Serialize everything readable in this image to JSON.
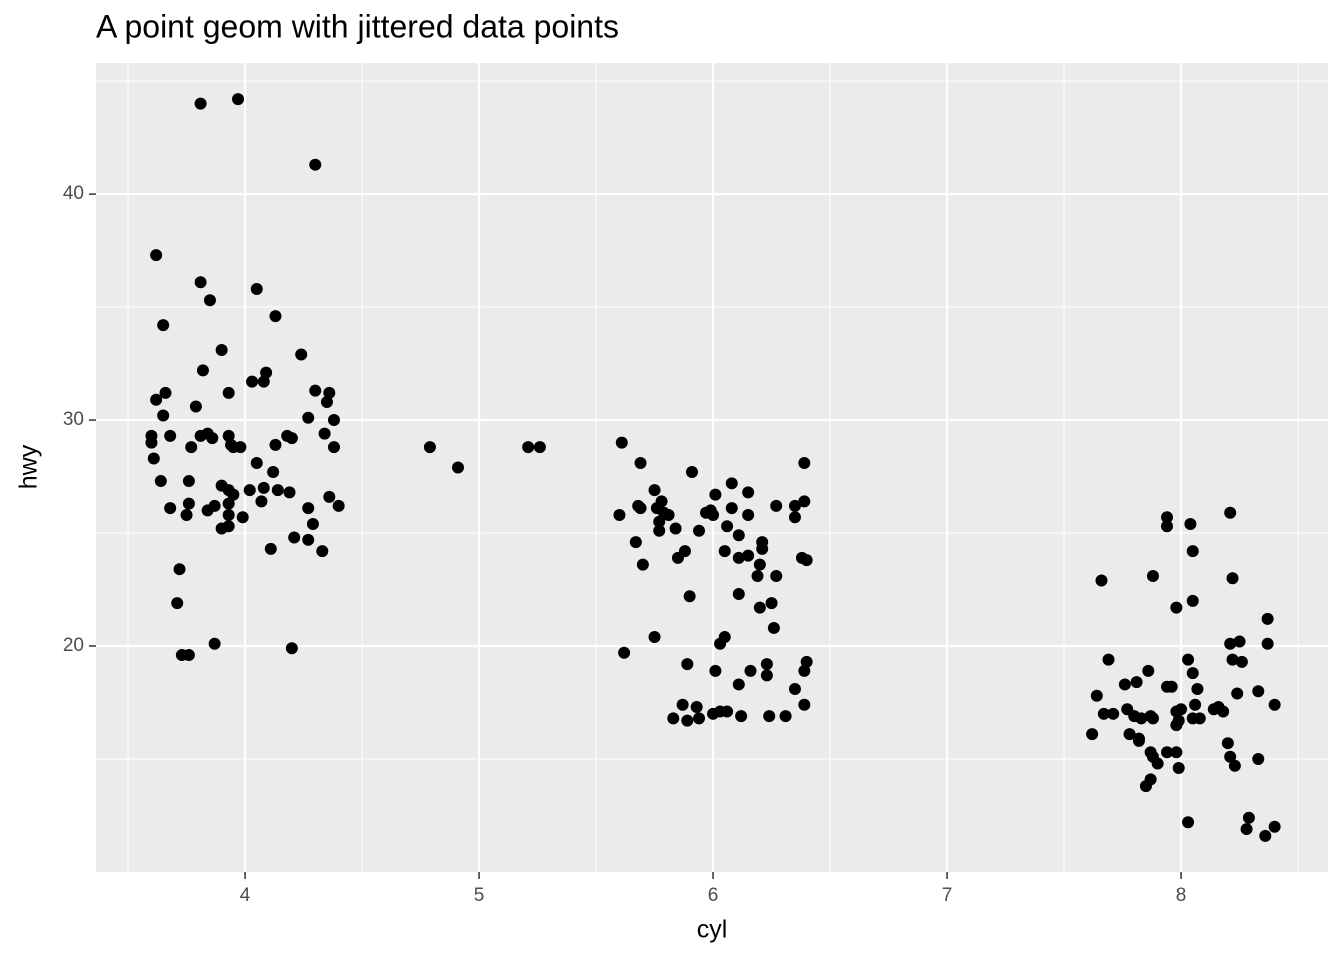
{
  "chart_data": {
    "type": "scatter",
    "title": "A point geom with jittered data points",
    "x_label": "cyl",
    "y_label": "hwy",
    "color": "#000000",
    "panel_color": "#ebebeb",
    "grid": true,
    "xlim": [
      3.363,
      8.628
    ],
    "ylim": [
      10.0,
      45.8
    ],
    "xticks": [
      4,
      5,
      6,
      7,
      8
    ],
    "yticks": [
      20,
      30,
      40
    ],
    "minor_xticks": [
      3.5,
      4.5,
      5.5,
      6.5,
      7.5,
      8.5
    ],
    "minor_yticks": [
      15,
      25,
      35,
      45
    ],
    "x": [
      3.97,
      3.81,
      4.3,
      3.62,
      3.81,
      4.05,
      3.85,
      4.13,
      3.65,
      3.9,
      4.24,
      3.82,
      4.09,
      4.03,
      4.08,
      3.66,
      3.93,
      4.3,
      4.36,
      3.62,
      4.35,
      3.79,
      3.65,
      4.27,
      4.38,
      3.6,
      3.68,
      3.81,
      3.84,
      3.86,
      3.93,
      4.18,
      4.2,
      4.34,
      3.6,
      3.77,
      3.94,
      3.95,
      3.98,
      4.13,
      4.38,
      3.61,
      4.05,
      4.12,
      3.64,
      3.76,
      3.9,
      4.08,
      4.14,
      3.93,
      4.02,
      4.19,
      3.95,
      4.36,
      4.07,
      3.76,
      3.93,
      3.68,
      3.87,
      3.84,
      4.27,
      4.4,
      3.75,
      3.93,
      3.99,
      3.9,
      3.93,
      4.29,
      4.21,
      4.27,
      4.11,
      4.33,
      3.72,
      3.71,
      3.87,
      4.2,
      3.73,
      3.76,
      4.79,
      4.91,
      5.21,
      5.26,
      5.61,
      5.69,
      6.39,
      5.91,
      5.75,
      6.08,
      6.01,
      6.15,
      5.78,
      6.39,
      5.68,
      5.69,
      5.76,
      5.79,
      5.6,
      5.97,
      5.99,
      6.08,
      6.27,
      6.35,
      5.81,
      6.0,
      6.15,
      6.35,
      5.77,
      6.06,
      5.84,
      5.94,
      5.77,
      6.11,
      5.67,
      6.21,
      5.88,
      6.05,
      6.21,
      5.85,
      6.11,
      6.15,
      6.38,
      6.4,
      5.7,
      6.2,
      6.19,
      6.27,
      6.11,
      5.9,
      6.25,
      6.2,
      6.26,
      6.05,
      6.03,
      5.75,
      5.62,
      5.89,
      6.23,
      6.4,
      6.01,
      6.16,
      6.39,
      6.23,
      6.11,
      6.35,
      5.87,
      5.93,
      6.39,
      6.0,
      6.03,
      6.06,
      5.83,
      5.89,
      5.94,
      6.12,
      6.24,
      6.31,
      7.94,
      8.21,
      8.04,
      7.94,
      8.05,
      7.88,
      8.22,
      7.66,
      8.05,
      7.98,
      8.37,
      8.21,
      8.25,
      8.37,
      7.69,
      8.03,
      8.22,
      8.26,
      8.05,
      7.86,
      7.76,
      7.81,
      7.94,
      7.96,
      8.07,
      8.24,
      8.33,
      7.64,
      8.4,
      7.77,
      7.67,
      7.71,
      8.0,
      8.06,
      8.14,
      8.16,
      8.18,
      7.98,
      7.8,
      7.83,
      7.87,
      7.88,
      7.99,
      8.05,
      8.08,
      7.62,
      7.78,
      7.82,
      7.82,
      8.2,
      7.98,
      7.87,
      7.94,
      7.98,
      7.88,
      8.21,
      8.33,
      7.9,
      7.99,
      8.23,
      7.87,
      7.85,
      8.29,
      8.03,
      8.4,
      8.28,
      8.36
    ],
    "y": [
      44.2,
      44.0,
      41.3,
      37.3,
      36.1,
      35.8,
      35.3,
      34.6,
      34.2,
      33.1,
      32.9,
      32.2,
      32.1,
      31.7,
      31.7,
      31.2,
      31.2,
      31.3,
      31.2,
      30.9,
      30.8,
      30.6,
      30.2,
      30.1,
      30.0,
      29.3,
      29.3,
      29.3,
      29.4,
      29.2,
      29.3,
      29.3,
      29.2,
      29.4,
      29.0,
      28.8,
      28.9,
      28.8,
      28.8,
      28.9,
      28.8,
      28.3,
      28.1,
      27.7,
      27.3,
      27.3,
      27.1,
      27.0,
      26.9,
      26.9,
      26.9,
      26.8,
      26.7,
      26.6,
      26.4,
      26.3,
      26.3,
      26.1,
      26.2,
      26.0,
      26.1,
      26.2,
      25.8,
      25.8,
      25.7,
      25.2,
      25.3,
      25.4,
      24.8,
      24.7,
      24.3,
      24.2,
      23.4,
      21.9,
      20.1,
      19.9,
      19.6,
      19.6,
      28.8,
      27.9,
      28.8,
      28.8,
      29.0,
      28.1,
      28.1,
      27.7,
      26.9,
      27.2,
      26.7,
      26.8,
      26.4,
      26.4,
      26.2,
      26.1,
      26.1,
      25.9,
      25.8,
      25.9,
      26.0,
      26.1,
      26.2,
      26.2,
      25.8,
      25.8,
      25.8,
      25.7,
      25.5,
      25.3,
      25.2,
      25.1,
      25.1,
      24.9,
      24.6,
      24.6,
      24.2,
      24.2,
      24.3,
      23.9,
      23.9,
      24.0,
      23.9,
      23.8,
      23.6,
      23.6,
      23.1,
      23.1,
      22.3,
      22.2,
      21.9,
      21.7,
      20.8,
      20.4,
      20.1,
      20.4,
      19.7,
      19.2,
      19.2,
      19.3,
      18.9,
      18.9,
      18.9,
      18.7,
      18.3,
      18.1,
      17.4,
      17.3,
      17.4,
      17.0,
      17.1,
      17.1,
      16.8,
      16.7,
      16.8,
      16.9,
      16.9,
      16.9,
      25.7,
      25.9,
      25.4,
      25.3,
      24.2,
      23.1,
      23.0,
      22.9,
      22.0,
      21.7,
      21.2,
      20.1,
      20.2,
      20.1,
      19.4,
      19.4,
      19.4,
      19.3,
      18.8,
      18.9,
      18.3,
      18.4,
      18.2,
      18.2,
      18.1,
      17.9,
      18.0,
      17.8,
      17.4,
      17.2,
      17.0,
      17.0,
      17.2,
      17.4,
      17.2,
      17.3,
      17.1,
      17.1,
      16.9,
      16.8,
      16.9,
      16.8,
      16.7,
      16.8,
      16.8,
      16.1,
      16.1,
      15.9,
      15.8,
      15.7,
      16.5,
      15.3,
      15.3,
      15.3,
      15.1,
      15.1,
      15.0,
      14.8,
      14.6,
      14.7,
      14.1,
      13.8,
      12.4,
      12.2,
      12.0,
      11.9,
      11.6
    ]
  }
}
